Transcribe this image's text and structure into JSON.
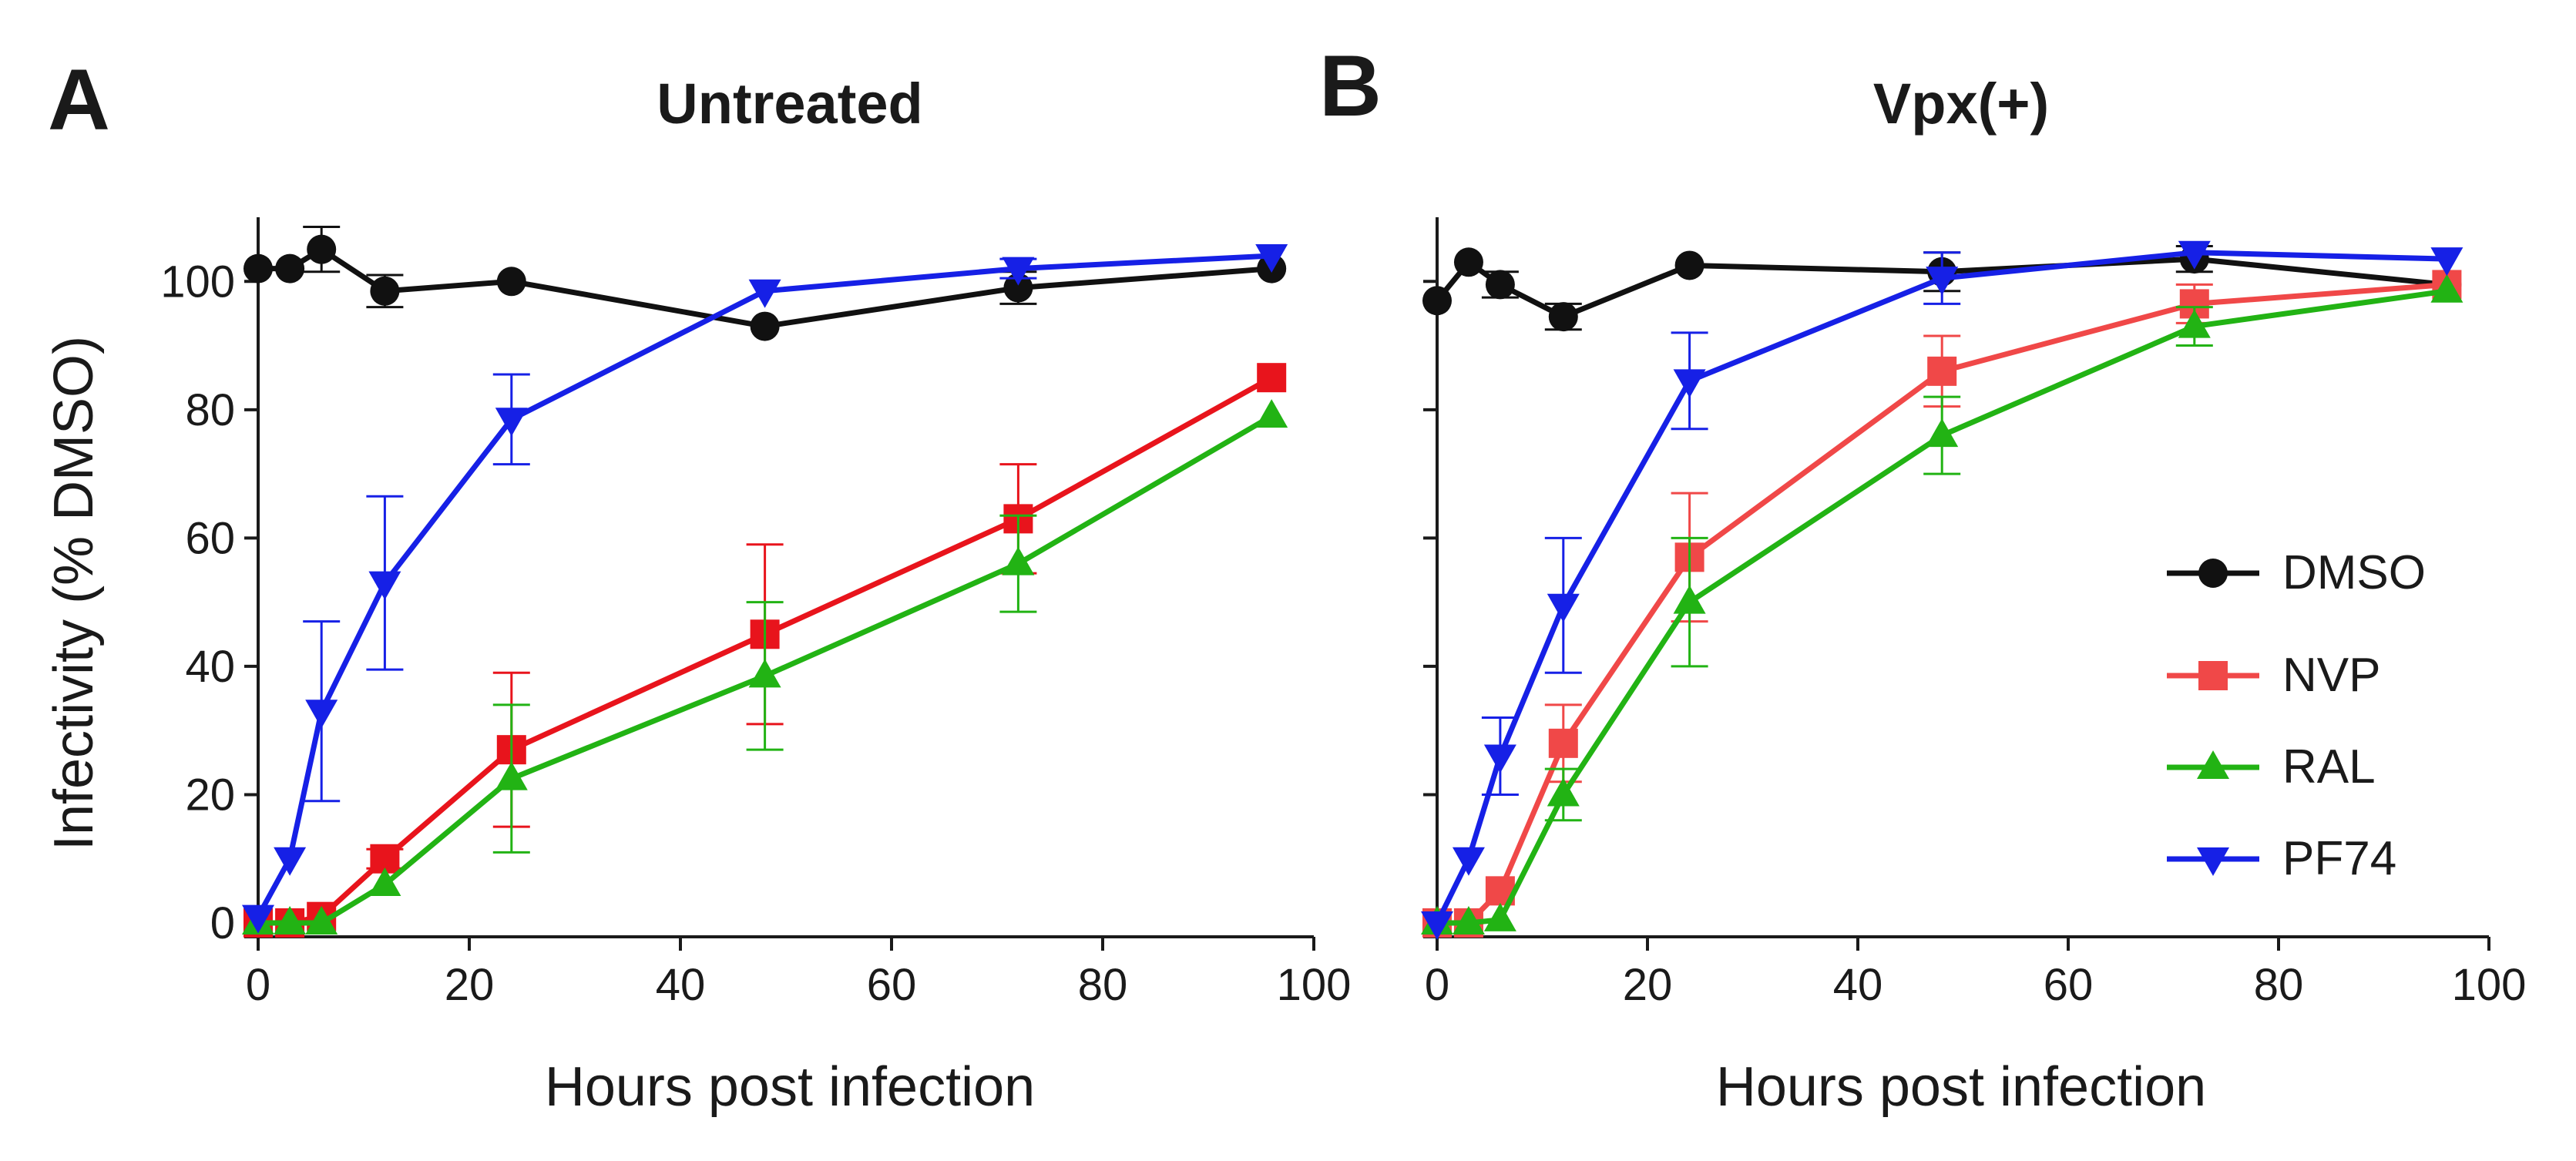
{
  "chart_data": [
    {
      "type": "line",
      "panel_letter": "A",
      "title": "Untreated",
      "xlabel": "Hours post infection",
      "ylabel": "Infectivity (% DMSO)",
      "xlim": [
        0,
        100
      ],
      "ylim": [
        0,
        110
      ],
      "xticks": [
        "0",
        "20",
        "40",
        "60",
        "80",
        "100"
      ],
      "yticks": [
        "0",
        "20",
        "40",
        "60",
        "80",
        "100"
      ],
      "x": [
        0,
        3,
        6,
        12,
        24,
        48,
        72,
        96
      ],
      "series": [
        {
          "name": "DMSO",
          "color": "#111111",
          "marker": "circle",
          "values": [
            102,
            102,
            105,
            98.5,
            100,
            93,
            99,
            102
          ],
          "err": [
            0,
            0,
            3.5,
            2.5,
            0,
            0,
            2.5,
            0
          ]
        },
        {
          "name": "NVP",
          "color": "#e8141c",
          "marker": "square",
          "values": [
            0,
            0,
            1,
            10,
            27,
            45,
            63,
            85
          ],
          "err": [
            0,
            0,
            0,
            1.5,
            12,
            14,
            8.5,
            0
          ]
        },
        {
          "name": "RAL",
          "color": "#22b314",
          "marker": "triangle-up",
          "values": [
            0,
            0,
            0,
            6,
            22.5,
            38.5,
            56,
            79
          ],
          "err": [
            0,
            0,
            0,
            0,
            11.5,
            11.5,
            7.5,
            0
          ]
        },
        {
          "name": "PF74",
          "color": "#1620e6",
          "marker": "triangle-down",
          "values": [
            1,
            10,
            33,
            53,
            78.5,
            98.5,
            102,
            104
          ],
          "err": [
            0,
            0,
            14,
            13.5,
            7,
            0,
            1.5,
            0
          ]
        }
      ]
    },
    {
      "type": "line",
      "panel_letter": "B",
      "title": "Vpx(+)",
      "xlabel": "Hours post infection",
      "ylabel": "",
      "xlim": [
        0,
        100
      ],
      "ylim": [
        0,
        110
      ],
      "xticks": [
        "0",
        "20",
        "40",
        "60",
        "80",
        "100"
      ],
      "yticks": [],
      "x": [
        0,
        3,
        6,
        12,
        24,
        48,
        72,
        96
      ],
      "series": [
        {
          "name": "DMSO",
          "color": "#111111",
          "marker": "circle",
          "values": [
            97,
            103,
            99.5,
            94.5,
            102.5,
            101.5,
            103.5,
            99.5
          ],
          "err": [
            0,
            0,
            2,
            2,
            0,
            3,
            2,
            0
          ]
        },
        {
          "name": "NVP",
          "color": "#f04848",
          "marker": "square",
          "values": [
            0,
            0,
            5,
            28,
            57,
            86,
            96.5,
            99.5
          ],
          "err": [
            0,
            0,
            0,
            6,
            10,
            5.5,
            3,
            0
          ]
        },
        {
          "name": "RAL",
          "color": "#22b314",
          "marker": "triangle-up",
          "values": [
            0,
            0,
            0.5,
            20,
            50,
            76,
            93,
            98.5
          ],
          "err": [
            0,
            0,
            0,
            4,
            10,
            6,
            3,
            0
          ]
        },
        {
          "name": "PF74",
          "color": "#1620e6",
          "marker": "triangle-down",
          "values": [
            0,
            10,
            26,
            49.5,
            84.5,
            100.5,
            104.5,
            103.5
          ],
          "err": [
            0,
            0,
            6,
            10.5,
            7.5,
            4,
            0,
            0
          ]
        }
      ]
    }
  ],
  "legend": {
    "entries": [
      {
        "name": "DMSO",
        "color": "#111111",
        "marker": "circle"
      },
      {
        "name": "NVP",
        "color": "#f04848",
        "marker": "square"
      },
      {
        "name": "RAL",
        "color": "#22b314",
        "marker": "triangle-up"
      },
      {
        "name": "PF74",
        "color": "#1620e6",
        "marker": "triangle-down"
      }
    ]
  }
}
